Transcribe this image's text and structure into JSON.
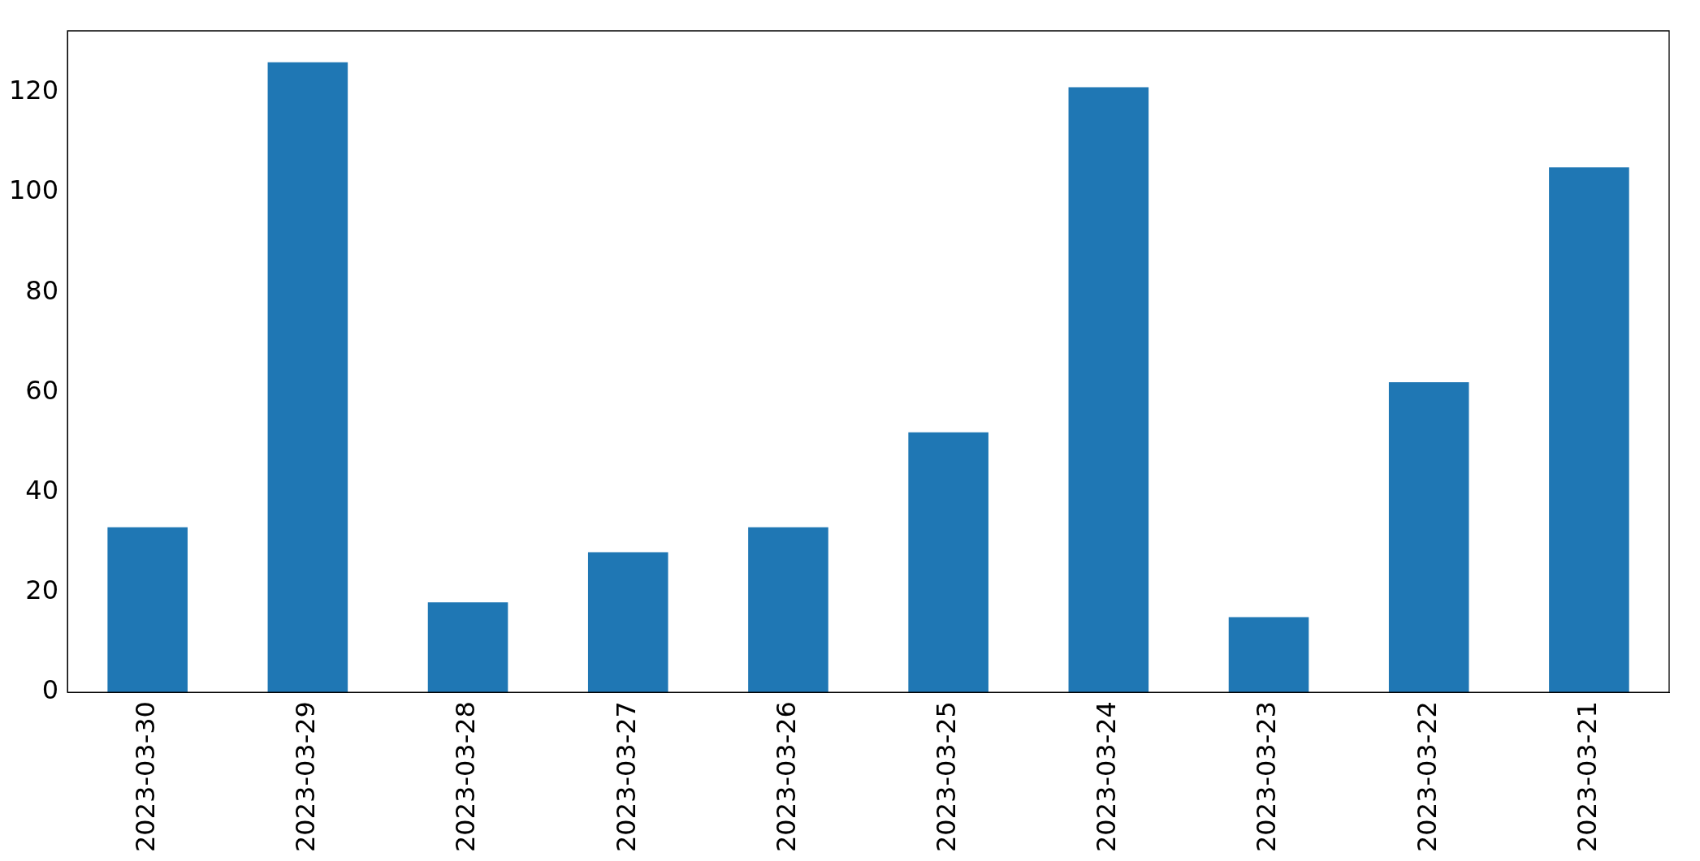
{
  "chart_data": {
    "type": "bar",
    "categories": [
      "2023-03-30",
      "2023-03-29",
      "2023-03-28",
      "2023-03-27",
      "2023-03-26",
      "2023-03-25",
      "2023-03-24",
      "2023-03-23",
      "2023-03-22",
      "2023-03-21"
    ],
    "values": [
      33,
      126,
      18,
      28,
      33,
      52,
      121,
      15,
      62,
      105
    ],
    "color": "#1f77b4",
    "ylim": [
      0,
      132.3
    ],
    "yticks": [
      0,
      20,
      40,
      60,
      80,
      100,
      120
    ],
    "grid": false,
    "legend": false
  }
}
